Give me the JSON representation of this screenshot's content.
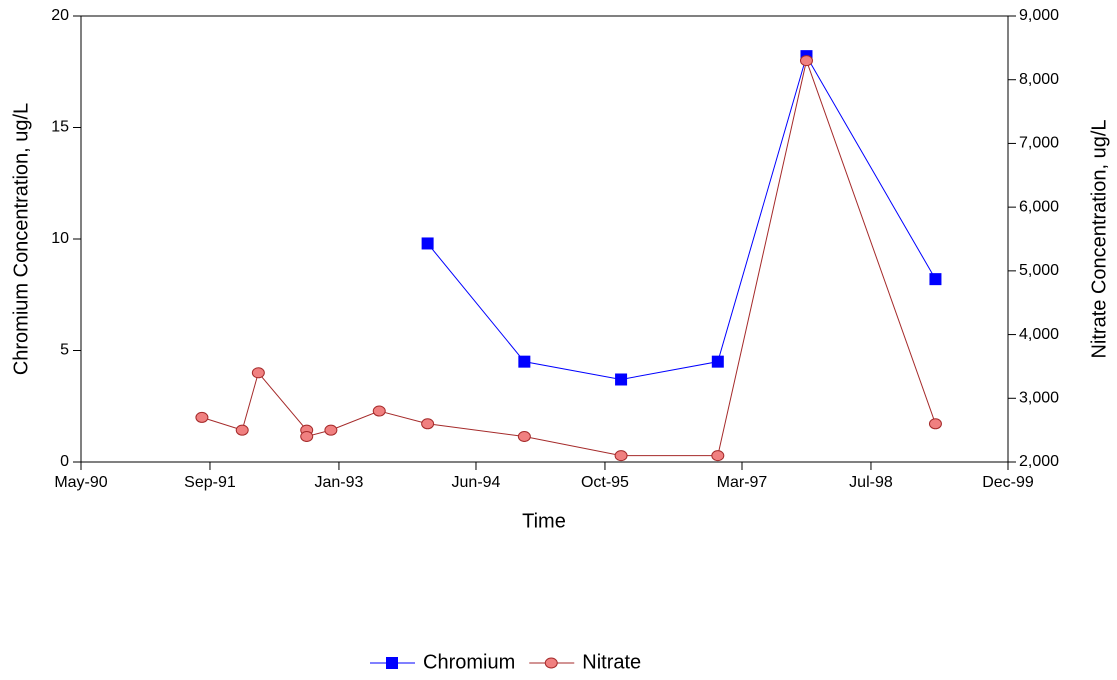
{
  "chart_data": {
    "type": "line",
    "x_label": "Time",
    "y_label": "Chromium Concentration, ug/L",
    "y2_label": "Nitrate Concentration, ug/L",
    "xlim": [
      "1990-05",
      "1999-12"
    ],
    "xticks": [
      {
        "value": "1990-05",
        "label": "May-90"
      },
      {
        "value": "1991-09",
        "label": "Sep-91"
      },
      {
        "value": "1993-01",
        "label": "Jan-93"
      },
      {
        "value": "1994-06",
        "label": "Jun-94"
      },
      {
        "value": "1995-10",
        "label": "Oct-95"
      },
      {
        "value": "1997-03",
        "label": "Mar-97"
      },
      {
        "value": "1998-07",
        "label": "Jul-98"
      },
      {
        "value": "1999-12",
        "label": "Dec-99"
      }
    ],
    "ylim": [
      0,
      20
    ],
    "yticks": [
      0,
      5,
      10,
      15,
      20
    ],
    "y2lim": [
      2000,
      9000
    ],
    "y2ticks": [
      {
        "value": 2000,
        "label": "2,000"
      },
      {
        "value": 3000,
        "label": "3,000"
      },
      {
        "value": 4000,
        "label": "4,000"
      },
      {
        "value": 5000,
        "label": "5,000"
      },
      {
        "value": 6000,
        "label": "6,000"
      },
      {
        "value": 7000,
        "label": "7,000"
      },
      {
        "value": 8000,
        "label": "8,000"
      },
      {
        "value": 9000,
        "label": "9,000"
      }
    ],
    "legend": "bottom",
    "series": [
      {
        "name": "Chromium",
        "color": "#0000ff",
        "marker": "square",
        "marker_fill": "#0000ff",
        "x": [
          "1993-12",
          "1994-12",
          "1995-12",
          "1996-12",
          "1997-11",
          "1999-03"
        ],
        "values": [
          9.8,
          4.5,
          3.7,
          4.5,
          18.2,
          8.2
        ]
      },
      {
        "name": "Nitrate",
        "color": "#a52a2a",
        "marker": "circle",
        "marker_fill": "#f08080",
        "axis": "y2",
        "x": [
          "1991-08",
          "1992-01",
          "1992-03",
          "1992-09",
          "1992-09",
          "1992-12",
          "1993-06",
          "1993-12",
          "1994-12",
          "1995-12",
          "1996-12",
          "1997-11",
          "1999-03"
        ],
        "values": [
          2700,
          2500,
          3400,
          2500,
          2400,
          2500,
          2800,
          2600,
          2400,
          2100,
          2100,
          8300,
          2600
        ]
      }
    ]
  }
}
